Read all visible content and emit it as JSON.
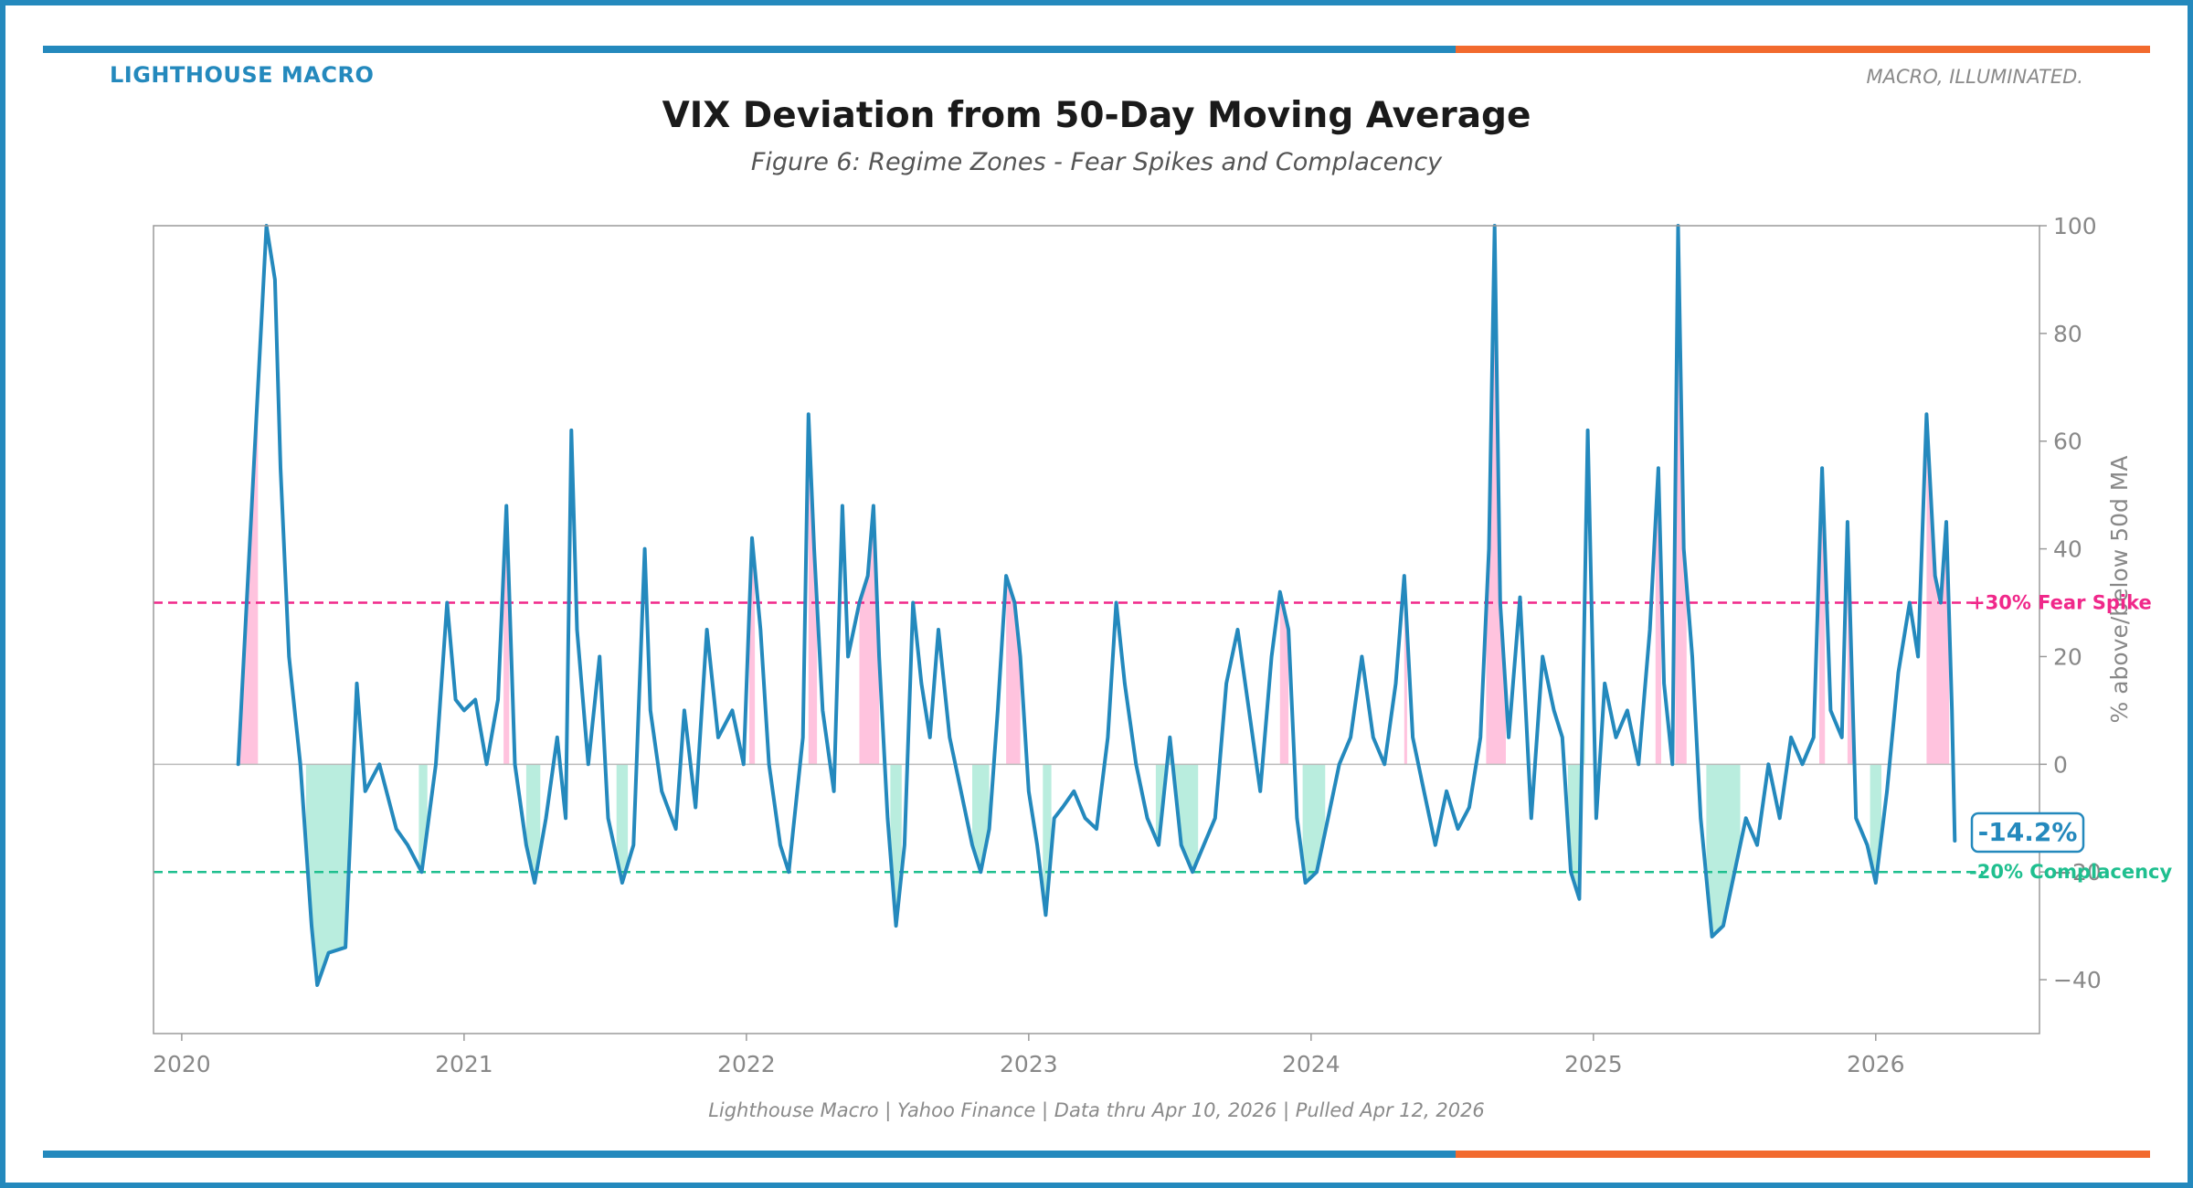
{
  "header": {
    "brand": "LIGHTHOUSE MACRO",
    "tagline": "MACRO, ILLUMINATED.",
    "title": "VIX Deviation from 50-Day Moving Average",
    "subtitle": "Figure 6: Regime Zones - Fear Spikes and Complacency"
  },
  "footer": {
    "source": "Lighthouse Macro | Yahoo Finance | Data thru Apr 10, 2026 | Pulled Apr 12, 2026"
  },
  "colors": {
    "brand_blue": "#2489bd",
    "brand_orange": "#f26a2e",
    "fear": "#f0288a",
    "complacency": "#1fbf8f"
  },
  "chart_data": {
    "type": "line",
    "title": "VIX Deviation from 50-Day Moving Average",
    "ylabel": "% above/below 50d MA",
    "xlabel": "",
    "ylim": [
      -50,
      100
    ],
    "xlim": [
      2019.9,
      2026.58
    ],
    "y_ticks": [
      -40,
      -20,
      0,
      20,
      40,
      60,
      80,
      100
    ],
    "x_ticks": [
      {
        "value": 2020,
        "label": "2020"
      },
      {
        "value": 2021,
        "label": "2021"
      },
      {
        "value": 2022,
        "label": "2022"
      },
      {
        "value": 2023,
        "label": "2023"
      },
      {
        "value": 2024,
        "label": "2024"
      },
      {
        "value": 2025,
        "label": "2025"
      },
      {
        "value": 2026,
        "label": "2026"
      }
    ],
    "thresholds": [
      {
        "name": "fear",
        "value": 30,
        "label": "+30% Fear Spike"
      },
      {
        "name": "complacency",
        "value": -20,
        "label": "-20% Complacency"
      }
    ],
    "latest": {
      "x": 2026.27,
      "value": -14.2,
      "label": "-14.2%"
    },
    "series": [
      {
        "name": "VIX deviation from 50d MA (%)",
        "points": [
          [
            2020.2,
            0
          ],
          [
            2020.3,
            100
          ],
          [
            2020.33,
            90
          ],
          [
            2020.35,
            55
          ],
          [
            2020.38,
            20
          ],
          [
            2020.42,
            0
          ],
          [
            2020.46,
            -30
          ],
          [
            2020.48,
            -41
          ],
          [
            2020.52,
            -35
          ],
          [
            2020.58,
            -34
          ],
          [
            2020.62,
            15
          ],
          [
            2020.65,
            -5
          ],
          [
            2020.7,
            0
          ],
          [
            2020.76,
            -12
          ],
          [
            2020.8,
            -15
          ],
          [
            2020.85,
            -20
          ],
          [
            2020.9,
            0
          ],
          [
            2020.94,
            30
          ],
          [
            2020.97,
            12
          ],
          [
            2021.0,
            10
          ],
          [
            2021.04,
            12
          ],
          [
            2021.08,
            0
          ],
          [
            2021.12,
            12
          ],
          [
            2021.15,
            48
          ],
          [
            2021.18,
            0
          ],
          [
            2021.22,
            -15
          ],
          [
            2021.25,
            -22
          ],
          [
            2021.29,
            -10
          ],
          [
            2021.33,
            5
          ],
          [
            2021.36,
            -10
          ],
          [
            2021.38,
            62
          ],
          [
            2021.4,
            25
          ],
          [
            2021.44,
            0
          ],
          [
            2021.48,
            20
          ],
          [
            2021.51,
            -10
          ],
          [
            2021.56,
            -22
          ],
          [
            2021.6,
            -15
          ],
          [
            2021.64,
            40
          ],
          [
            2021.66,
            10
          ],
          [
            2021.7,
            -5
          ],
          [
            2021.75,
            -12
          ],
          [
            2021.78,
            10
          ],
          [
            2021.82,
            -8
          ],
          [
            2021.86,
            25
          ],
          [
            2021.9,
            5
          ],
          [
            2021.95,
            10
          ],
          [
            2021.99,
            0
          ],
          [
            2022.02,
            42
          ],
          [
            2022.05,
            25
          ],
          [
            2022.08,
            0
          ],
          [
            2022.12,
            -15
          ],
          [
            2022.15,
            -20
          ],
          [
            2022.2,
            5
          ],
          [
            2022.22,
            65
          ],
          [
            2022.24,
            40
          ],
          [
            2022.27,
            10
          ],
          [
            2022.31,
            -5
          ],
          [
            2022.34,
            48
          ],
          [
            2022.36,
            20
          ],
          [
            2022.4,
            30
          ],
          [
            2022.43,
            35
          ],
          [
            2022.45,
            48
          ],
          [
            2022.47,
            20
          ],
          [
            2022.5,
            -10
          ],
          [
            2022.53,
            -30
          ],
          [
            2022.56,
            -15
          ],
          [
            2022.59,
            30
          ],
          [
            2022.62,
            15
          ],
          [
            2022.65,
            5
          ],
          [
            2022.68,
            25
          ],
          [
            2022.72,
            5
          ],
          [
            2022.76,
            -5
          ],
          [
            2022.8,
            -15
          ],
          [
            2022.83,
            -20
          ],
          [
            2022.86,
            -12
          ],
          [
            2022.89,
            10
          ],
          [
            2022.92,
            35
          ],
          [
            2022.95,
            30
          ],
          [
            2022.97,
            20
          ],
          [
            2023.0,
            -5
          ],
          [
            2023.03,
            -15
          ],
          [
            2023.06,
            -28
          ],
          [
            2023.09,
            -10
          ],
          [
            2023.12,
            -8
          ],
          [
            2023.16,
            -5
          ],
          [
            2023.2,
            -10
          ],
          [
            2023.24,
            -12
          ],
          [
            2023.28,
            5
          ],
          [
            2023.31,
            30
          ],
          [
            2023.34,
            15
          ],
          [
            2023.38,
            0
          ],
          [
            2023.42,
            -10
          ],
          [
            2023.46,
            -15
          ],
          [
            2023.5,
            5
          ],
          [
            2023.54,
            -15
          ],
          [
            2023.58,
            -20
          ],
          [
            2023.62,
            -15
          ],
          [
            2023.66,
            -10
          ],
          [
            2023.7,
            15
          ],
          [
            2023.74,
            25
          ],
          [
            2023.78,
            10
          ],
          [
            2023.82,
            -5
          ],
          [
            2023.86,
            20
          ],
          [
            2023.89,
            32
          ],
          [
            2023.92,
            25
          ],
          [
            2023.95,
            -10
          ],
          [
            2023.98,
            -22
          ],
          [
            2024.02,
            -20
          ],
          [
            2024.06,
            -10
          ],
          [
            2024.1,
            0
          ],
          [
            2024.14,
            5
          ],
          [
            2024.18,
            20
          ],
          [
            2024.22,
            5
          ],
          [
            2024.26,
            0
          ],
          [
            2024.3,
            15
          ],
          [
            2024.33,
            35
          ],
          [
            2024.36,
            5
          ],
          [
            2024.4,
            -5
          ],
          [
            2024.44,
            -15
          ],
          [
            2024.48,
            -5
          ],
          [
            2024.52,
            -12
          ],
          [
            2024.56,
            -8
          ],
          [
            2024.6,
            5
          ],
          [
            2024.63,
            40
          ],
          [
            2024.65,
            100
          ],
          [
            2024.67,
            30
          ],
          [
            2024.7,
            5
          ],
          [
            2024.74,
            31
          ],
          [
            2024.78,
            -10
          ],
          [
            2024.82,
            20
          ],
          [
            2024.86,
            10
          ],
          [
            2024.89,
            5
          ],
          [
            2024.92,
            -20
          ],
          [
            2024.95,
            -25
          ],
          [
            2024.98,
            62
          ],
          [
            2025.01,
            -10
          ],
          [
            2025.04,
            15
          ],
          [
            2025.08,
            5
          ],
          [
            2025.12,
            10
          ],
          [
            2025.16,
            0
          ],
          [
            2025.2,
            25
          ],
          [
            2025.23,
            55
          ],
          [
            2025.25,
            15
          ],
          [
            2025.28,
            0
          ],
          [
            2025.3,
            100
          ],
          [
            2025.32,
            40
          ],
          [
            2025.35,
            20
          ],
          [
            2025.38,
            -10
          ],
          [
            2025.42,
            -32
          ],
          [
            2025.46,
            -30
          ],
          [
            2025.5,
            -20
          ],
          [
            2025.54,
            -10
          ],
          [
            2025.58,
            -15
          ],
          [
            2025.62,
            0
          ],
          [
            2025.66,
            -10
          ],
          [
            2025.7,
            5
          ],
          [
            2025.74,
            0
          ],
          [
            2025.78,
            5
          ],
          [
            2025.81,
            55
          ],
          [
            2025.84,
            10
          ],
          [
            2025.88,
            5
          ],
          [
            2025.9,
            45
          ],
          [
            2025.93,
            -10
          ],
          [
            2025.97,
            -15
          ],
          [
            2026.0,
            -22
          ],
          [
            2026.04,
            -5
          ],
          [
            2026.08,
            17
          ],
          [
            2026.12,
            30
          ],
          [
            2026.15,
            20
          ],
          [
            2026.18,
            65
          ],
          [
            2026.21,
            35
          ],
          [
            2026.23,
            30
          ],
          [
            2026.25,
            45
          ],
          [
            2026.27,
            10
          ],
          [
            2026.28,
            -14.2
          ]
        ]
      }
    ],
    "fear_zones": [
      [
        2020.2,
        2020.27
      ],
      [
        2021.14,
        2021.16
      ],
      [
        2022.01,
        2022.03
      ],
      [
        2022.22,
        2022.25
      ],
      [
        2022.4,
        2022.47
      ],
      [
        2022.92,
        2022.97
      ],
      [
        2023.89,
        2023.92
      ],
      [
        2024.33,
        2024.34
      ],
      [
        2024.62,
        2024.69
      ],
      [
        2025.22,
        2025.24
      ],
      [
        2025.29,
        2025.33
      ],
      [
        2025.8,
        2025.82
      ],
      [
        2025.9,
        2025.92
      ],
      [
        2026.18,
        2026.26
      ]
    ],
    "complacency_zones": [
      [
        2020.44,
        2020.6
      ],
      [
        2020.84,
        2020.87
      ],
      [
        2021.22,
        2021.27
      ],
      [
        2021.54,
        2021.58
      ],
      [
        2022.51,
        2022.55
      ],
      [
        2022.8,
        2022.86
      ],
      [
        2023.05,
        2023.08
      ],
      [
        2023.45,
        2023.6
      ],
      [
        2023.97,
        2024.05
      ],
      [
        2024.91,
        2024.97
      ],
      [
        2025.4,
        2025.52
      ],
      [
        2025.98,
        2026.02
      ]
    ]
  }
}
